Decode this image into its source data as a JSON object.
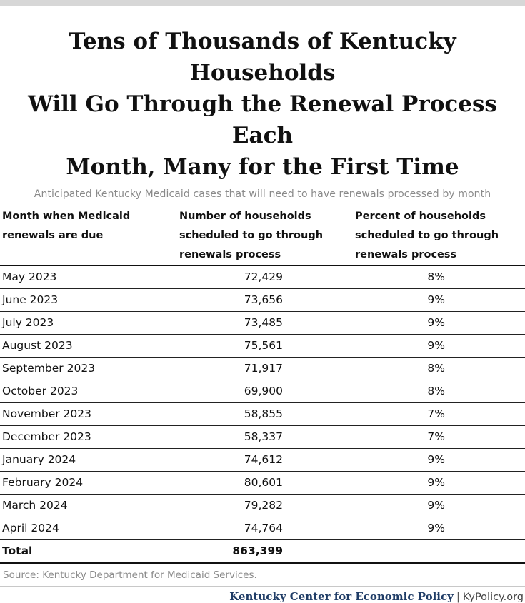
{
  "chart_data": {
    "type": "table",
    "title": [
      "Tens of Thousands of Kentucky Households",
      "Will Go Through the Renewal Process Each",
      "Month, Many for the First Time"
    ],
    "subtitle": "Anticipated Kentucky Medicaid cases that will need to have renewals processed by month",
    "columns": [
      [
        "Month when Medicaid",
        "renewals are due"
      ],
      [
        "Number of households",
        "scheduled to go through",
        "renewals process"
      ],
      [
        "Percent of households",
        "scheduled to go through",
        "renewals process"
      ]
    ],
    "rows": [
      {
        "month": "May 2023",
        "households": "72,429",
        "percent": "8%"
      },
      {
        "month": "June 2023",
        "households": "73,656",
        "percent": "9%"
      },
      {
        "month": "July 2023",
        "households": "73,485",
        "percent": "9%"
      },
      {
        "month": "August 2023",
        "households": "75,561",
        "percent": "9%"
      },
      {
        "month": "September 2023",
        "households": "71,917",
        "percent": "8%"
      },
      {
        "month": "October 2023",
        "households": "69,900",
        "percent": "8%"
      },
      {
        "month": "November 2023",
        "households": "58,855",
        "percent": "7%"
      },
      {
        "month": "December 2023",
        "households": "58,337",
        "percent": "7%"
      },
      {
        "month": "January 2024",
        "households": "74,612",
        "percent": "9%"
      },
      {
        "month": "February 2024",
        "households": "80,601",
        "percent": "9%"
      },
      {
        "month": "March 2024",
        "households": "79,282",
        "percent": "9%"
      },
      {
        "month": "April 2024",
        "households": "74,764",
        "percent": "9%"
      }
    ],
    "total": {
      "label": "Total",
      "households": "863,399"
    },
    "source": "Source: Kentucky Department for Medicaid Services."
  },
  "footer": {
    "org": "Kentucky Center for Economic Policy",
    "separator": "|",
    "site": "KyPolicy.org"
  }
}
